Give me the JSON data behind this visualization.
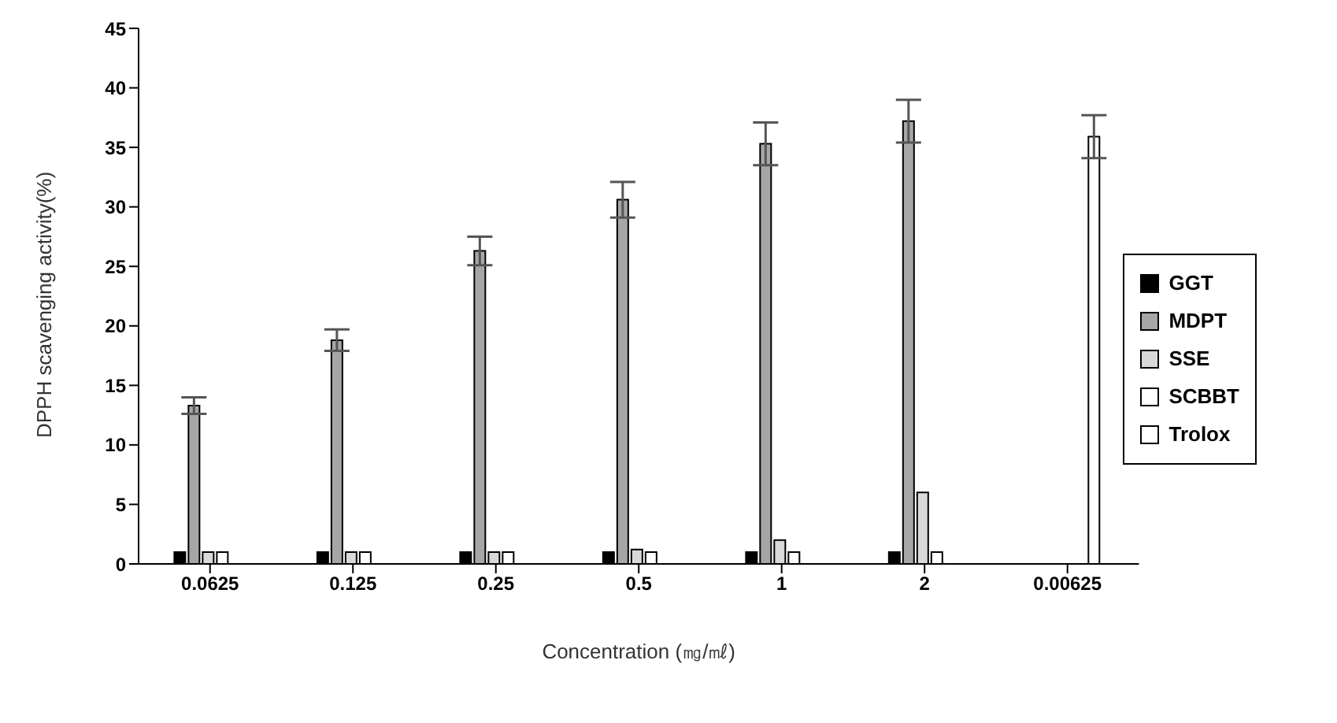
{
  "chart_data": {
    "type": "bar",
    "xlabel": "Concentration (㎎/㎖)",
    "ylabel": "DPPH scavenging activity(%)",
    "categories": [
      "0.0625",
      "0.125",
      "0.25",
      "0.5",
      "1",
      "2",
      "0.00625"
    ],
    "series": [
      {
        "name": "GGT",
        "color": "#000000",
        "values": [
          1,
          1,
          1,
          1,
          1,
          1,
          null
        ]
      },
      {
        "name": "MDPT",
        "color": "#a6a6a6",
        "values": [
          13.3,
          18.8,
          26.3,
          30.6,
          35.3,
          37.2,
          null
        ],
        "errors": [
          0.7,
          0.9,
          1.2,
          1.5,
          1.8,
          1.8,
          null
        ]
      },
      {
        "name": "SSE",
        "color": "#d9d9d9",
        "values": [
          1,
          1,
          1,
          1.2,
          2,
          6,
          null
        ]
      },
      {
        "name": "SCBBT",
        "color": "#ffffff",
        "values": [
          1,
          1,
          1,
          1,
          1,
          1,
          null
        ]
      },
      {
        "name": "Trolox",
        "color": "#ffffff",
        "values": [
          null,
          null,
          null,
          null,
          null,
          null,
          35.9
        ],
        "errors": [
          null,
          null,
          null,
          null,
          null,
          null,
          1.8
        ]
      }
    ],
    "ylim": [
      0,
      45
    ],
    "yticks": [
      0,
      5,
      10,
      15,
      20,
      25,
      30,
      35,
      40,
      45
    ],
    "grid": false,
    "legend": "right"
  }
}
